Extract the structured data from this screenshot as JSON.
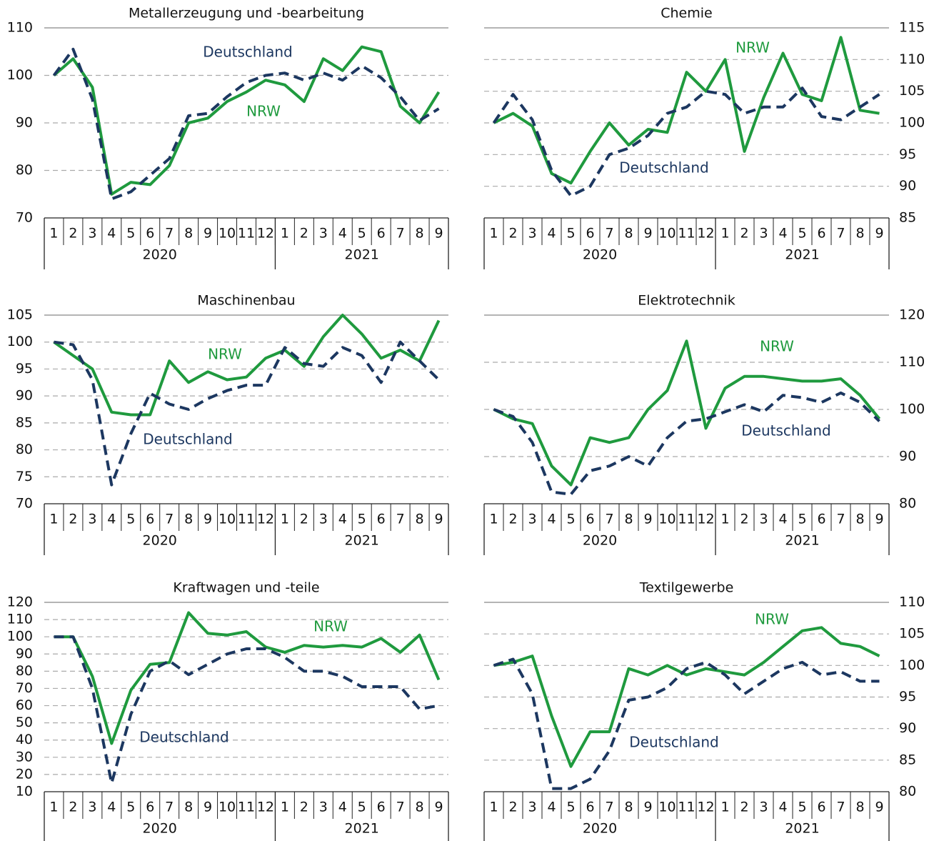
{
  "chart_data": [
    {
      "type": "line",
      "title": "Metallerzeugung und -bearbeitung",
      "y_axis_side": "left",
      "categories": [
        "1",
        "2",
        "3",
        "4",
        "5",
        "6",
        "7",
        "8",
        "9",
        "10",
        "11",
        "12",
        "1",
        "2",
        "3",
        "4",
        "5",
        "6",
        "7",
        "8",
        "9"
      ],
      "year_groups": [
        {
          "label": "2020",
          "count": 12
        },
        {
          "label": "2021",
          "count": 9
        }
      ],
      "ylim": [
        70,
        110
      ],
      "yticks": [
        70,
        80,
        90,
        100,
        110
      ],
      "grid": true,
      "series": [
        {
          "name": "NRW",
          "color": "#1f9a3e",
          "line_style": "solid",
          "values": [
            100,
            103.5,
            97.5,
            75,
            77.5,
            77,
            81,
            90,
            91,
            94.5,
            96.5,
            99,
            98,
            94.5,
            103.5,
            101,
            106,
            105,
            93.5,
            90,
            96.5
          ]
        },
        {
          "name": "Deutschland",
          "color": "#1c3760",
          "line_style": "dashed",
          "values": [
            100,
            105.5,
            95,
            74,
            75.5,
            79,
            82.5,
            91.5,
            92,
            95.5,
            98.5,
            100,
            100.5,
            99,
            100.5,
            99,
            102,
            99.5,
            95.5,
            90.5,
            93
          ]
        }
      ]
    },
    {
      "type": "line",
      "title": "Chemie",
      "y_axis_side": "right",
      "categories": [
        "1",
        "2",
        "3",
        "4",
        "5",
        "6",
        "7",
        "8",
        "9",
        "10",
        "11",
        "12",
        "1",
        "2",
        "3",
        "4",
        "5",
        "6",
        "7",
        "8",
        "9"
      ],
      "year_groups": [
        {
          "label": "2020",
          "count": 12
        },
        {
          "label": "2021",
          "count": 9
        }
      ],
      "ylim": [
        85,
        115
      ],
      "yticks": [
        85,
        90,
        95,
        100,
        105,
        110,
        115
      ],
      "grid": true,
      "series": [
        {
          "name": "NRW",
          "color": "#1f9a3e",
          "line_style": "solid",
          "values": [
            100,
            101.5,
            99.5,
            92,
            90.5,
            95.5,
            100,
            96.5,
            99,
            98.5,
            108,
            105,
            110,
            95.5,
            104,
            111,
            104.5,
            103.5,
            113.5,
            102,
            101.5
          ]
        },
        {
          "name": "Deutschland",
          "color": "#1c3760",
          "line_style": "dashed",
          "values": [
            100,
            104.5,
            100.5,
            92.5,
            88.5,
            90,
            95,
            96,
            98,
            101.5,
            102.5,
            105,
            104.5,
            101.5,
            102.5,
            102.5,
            105.5,
            101,
            100.5,
            102.5,
            104.5
          ]
        }
      ]
    },
    {
      "type": "line",
      "title": "Maschinenbau",
      "y_axis_side": "left",
      "categories": [
        "1",
        "2",
        "3",
        "4",
        "5",
        "6",
        "7",
        "8",
        "9",
        "10",
        "11",
        "12",
        "1",
        "2",
        "3",
        "4",
        "5",
        "6",
        "7",
        "8",
        "9"
      ],
      "year_groups": [
        {
          "label": "2020",
          "count": 12
        },
        {
          "label": "2021",
          "count": 9
        }
      ],
      "ylim": [
        70,
        105
      ],
      "yticks": [
        70,
        75,
        80,
        85,
        90,
        95,
        100,
        105
      ],
      "grid": true,
      "series": [
        {
          "name": "NRW",
          "color": "#1f9a3e",
          "line_style": "solid",
          "values": [
            100,
            97.5,
            95,
            87,
            86.5,
            86.5,
            96.5,
            92.5,
            94.5,
            93,
            93.5,
            97,
            98.5,
            95.5,
            101,
            105,
            101.5,
            97,
            98.5,
            96.5,
            104
          ]
        },
        {
          "name": "Deutschland",
          "color": "#1c3760",
          "line_style": "dashed",
          "values": [
            100,
            99.5,
            93,
            73.5,
            83,
            90.5,
            88.5,
            87.5,
            89.5,
            91,
            92,
            92,
            99,
            96,
            95.5,
            99,
            97.5,
            92.5,
            100,
            96.5,
            93
          ]
        }
      ]
    },
    {
      "type": "line",
      "title": "Elektrotechnik",
      "y_axis_side": "right",
      "categories": [
        "1",
        "2",
        "3",
        "4",
        "5",
        "6",
        "7",
        "8",
        "9",
        "10",
        "11",
        "12",
        "1",
        "2",
        "3",
        "4",
        "5",
        "6",
        "7",
        "8",
        "9"
      ],
      "year_groups": [
        {
          "label": "2020",
          "count": 12
        },
        {
          "label": "2021",
          "count": 9
        }
      ],
      "ylim": [
        80,
        120
      ],
      "yticks": [
        80,
        90,
        100,
        110,
        120
      ],
      "grid": true,
      "series": [
        {
          "name": "NRW",
          "color": "#1f9a3e",
          "line_style": "solid",
          "values": [
            100,
            98,
            97,
            88,
            84,
            94,
            93,
            94,
            100,
            104,
            114.5,
            96,
            104.5,
            107,
            107,
            106.5,
            106,
            106,
            106.5,
            103,
            98
          ]
        },
        {
          "name": "Deutschland",
          "color": "#1c3760",
          "line_style": "dashed",
          "values": [
            100,
            98.5,
            93,
            82.5,
            82,
            87,
            88,
            90,
            88,
            94,
            97.5,
            98,
            99.5,
            101,
            99.5,
            103,
            102.5,
            101.5,
            103.5,
            101.5,
            97.5
          ]
        }
      ]
    },
    {
      "type": "line",
      "title": "Kraftwagen und -teile",
      "y_axis_side": "left",
      "categories": [
        "1",
        "2",
        "3",
        "4",
        "5",
        "6",
        "7",
        "8",
        "9",
        "10",
        "11",
        "12",
        "1",
        "2",
        "3",
        "4",
        "5",
        "6",
        "7",
        "8",
        "9"
      ],
      "year_groups": [
        {
          "label": "2020",
          "count": 12
        },
        {
          "label": "2021",
          "count": 9
        }
      ],
      "ylim": [
        10,
        120
      ],
      "yticks": [
        10,
        20,
        30,
        40,
        50,
        60,
        70,
        80,
        90,
        100,
        110,
        120
      ],
      "grid": true,
      "series": [
        {
          "name": "NRW",
          "color": "#1f9a3e",
          "line_style": "solid",
          "values": [
            100,
            100,
            77,
            38,
            69,
            84,
            85,
            114,
            102,
            101,
            103,
            94,
            91,
            95,
            94,
            95,
            94,
            99,
            91,
            101,
            75
          ]
        },
        {
          "name": "Deutschland",
          "color": "#1c3760",
          "line_style": "dashed",
          "values": [
            100,
            100,
            70,
            15,
            55,
            80,
            86,
            78,
            84,
            90,
            93,
            93,
            88,
            80,
            80,
            77,
            71,
            71,
            71,
            58,
            60
          ]
        }
      ]
    },
    {
      "type": "line",
      "title": "Textilgewerbe",
      "y_axis_side": "right",
      "categories": [
        "1",
        "2",
        "3",
        "4",
        "5",
        "6",
        "7",
        "8",
        "9",
        "10",
        "11",
        "12",
        "1",
        "2",
        "3",
        "4",
        "5",
        "6",
        "7",
        "8",
        "9"
      ],
      "year_groups": [
        {
          "label": "2020",
          "count": 12
        },
        {
          "label": "2021",
          "count": 9
        }
      ],
      "ylim": [
        80,
        110
      ],
      "yticks": [
        80,
        85,
        90,
        95,
        100,
        105,
        110
      ],
      "grid": true,
      "series": [
        {
          "name": "NRW",
          "color": "#1f9a3e",
          "line_style": "solid",
          "values": [
            100,
            100.5,
            101.5,
            92,
            84,
            89.5,
            89.5,
            99.5,
            98.5,
            100,
            98.5,
            99.5,
            99,
            98.5,
            100.5,
            103,
            105.5,
            106,
            103.5,
            103,
            101.5
          ]
        },
        {
          "name": "Deutschland",
          "color": "#1c3760",
          "line_style": "dashed",
          "values": [
            100,
            101,
            95.5,
            80.5,
            80.5,
            82,
            86.5,
            94.5,
            95,
            96.5,
            99.5,
            100.5,
            98.5,
            95.5,
            97.5,
            99.5,
            100.5,
            98.5,
            99,
            97.5,
            97.5
          ]
        }
      ]
    }
  ]
}
